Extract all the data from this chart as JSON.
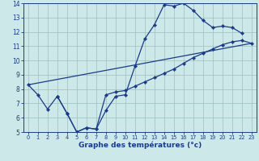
{
  "xlabel": "Graphe des températures (°c)",
  "xlim": [
    -0.5,
    23.5
  ],
  "ylim": [
    5,
    14
  ],
  "xticks": [
    0,
    1,
    2,
    3,
    4,
    5,
    6,
    7,
    8,
    9,
    10,
    11,
    12,
    13,
    14,
    15,
    16,
    17,
    18,
    19,
    20,
    21,
    22,
    23
  ],
  "yticks": [
    5,
    6,
    7,
    8,
    9,
    10,
    11,
    12,
    13,
    14
  ],
  "background_color": "#cde8e8",
  "line_color": "#1a3a8a",
  "grid_color": "#9bbfbf",
  "curve1_x": [
    0,
    1,
    2,
    3,
    4,
    5,
    6,
    7,
    8,
    9,
    10,
    11,
    12,
    13,
    14,
    15,
    16,
    17,
    18,
    19,
    20,
    21,
    22
  ],
  "curve1_y": [
    8.3,
    7.6,
    6.6,
    7.5,
    6.3,
    5.0,
    5.3,
    5.2,
    6.5,
    7.5,
    7.6,
    9.6,
    11.5,
    12.5,
    13.9,
    13.8,
    14.0,
    13.5,
    12.8,
    12.3,
    12.4,
    12.3,
    11.9
  ],
  "curve2_x": [
    0,
    23
  ],
  "curve2_y": [
    8.3,
    11.2
  ],
  "curve3_x": [
    3,
    4,
    5,
    6,
    7,
    8,
    9,
    10,
    11,
    12,
    13,
    14,
    15,
    16,
    17,
    18,
    19,
    20,
    21,
    22,
    23
  ],
  "curve3_y": [
    7.5,
    6.3,
    5.0,
    5.3,
    5.2,
    7.6,
    7.8,
    7.9,
    8.2,
    8.5,
    8.8,
    9.1,
    9.4,
    9.8,
    10.2,
    10.5,
    10.8,
    11.1,
    11.3,
    11.4,
    11.2
  ],
  "tick_fontsize": 5.5,
  "xlabel_fontsize": 6.5
}
